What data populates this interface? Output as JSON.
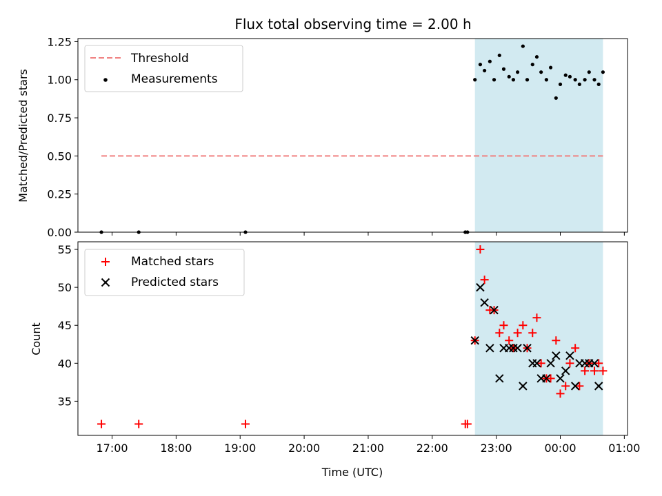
{
  "chart_data": [
    {
      "type": "scatter",
      "title": "Flux total observing time = 2.00 h",
      "xlabel": "",
      "ylabel": "Matched/Predicted stars",
      "x_ticks": [
        "17:00",
        "18:00",
        "19:00",
        "20:00",
        "21:00",
        "22:00",
        "23:00",
        "00:00",
        "01:00"
      ],
      "y_ticks": [
        "0.00",
        "0.25",
        "0.50",
        "0.75",
        "1.00",
        "1.25"
      ],
      "xlim": [
        "16:28",
        "01:03"
      ],
      "ylim": [
        0.0,
        1.27
      ],
      "shaded_region": {
        "from": "22:40",
        "to": "00:40",
        "color": "#add8e6"
      },
      "legend": {
        "placement": "top-left",
        "entries": [
          "Threshold",
          "Measurements"
        ]
      },
      "series": [
        {
          "name": "Threshold",
          "style": "dashed-line",
          "color": "#f08080",
          "x": [
            "16:50",
            "00:40"
          ],
          "y": [
            0.5,
            0.5
          ]
        },
        {
          "name": "Measurements",
          "style": "dot",
          "color": "#000000",
          "x": [
            "16:50",
            "17:25",
            "19:05",
            "22:31",
            "22:33",
            "22:40",
            "22:45",
            "22:49",
            "22:54",
            "22:58",
            "23:03",
            "23:07",
            "23:12",
            "23:16",
            "23:20",
            "23:25",
            "23:29",
            "23:34",
            "23:38",
            "23:42",
            "23:47",
            "23:51",
            "23:56",
            "00:00",
            "00:05",
            "00:09",
            "00:14",
            "00:18",
            "00:23",
            "00:27",
            "00:32",
            "00:36",
            "00:40"
          ],
          "y": [
            0.0,
            0.0,
            0.0,
            0.0,
            0.0,
            1.0,
            1.1,
            1.06,
            1.12,
            1.0,
            1.16,
            1.07,
            1.02,
            1.0,
            1.05,
            1.22,
            1.0,
            1.1,
            1.15,
            1.05,
            1.0,
            1.08,
            0.88,
            0.97,
            1.03,
            1.02,
            1.0,
            0.97,
            1.0,
            1.05,
            1.0,
            0.97,
            1.05
          ]
        }
      ]
    },
    {
      "type": "scatter",
      "title": "",
      "xlabel": "Time (UTC)",
      "ylabel": "Count",
      "x_ticks": [
        "17:00",
        "18:00",
        "19:00",
        "20:00",
        "21:00",
        "22:00",
        "23:00",
        "00:00",
        "01:00"
      ],
      "y_ticks": [
        "35",
        "40",
        "45",
        "50",
        "55"
      ],
      "xlim": [
        "16:28",
        "01:03"
      ],
      "ylim": [
        30.5,
        56.0
      ],
      "shaded_region": {
        "from": "22:40",
        "to": "00:40",
        "color": "#add8e6"
      },
      "legend": {
        "placement": "top-left",
        "entries": [
          "Matched stars",
          "Predicted stars"
        ]
      },
      "series": [
        {
          "name": "Matched stars",
          "marker": "plus",
          "color": "#ff0000",
          "x": [
            "16:50",
            "17:25",
            "19:05",
            "22:31",
            "22:33",
            "22:40",
            "22:45",
            "22:49",
            "22:54",
            "22:58",
            "23:03",
            "23:07",
            "23:12",
            "23:16",
            "23:20",
            "23:25",
            "23:29",
            "23:34",
            "23:38",
            "23:42",
            "23:47",
            "23:51",
            "23:56",
            "00:00",
            "00:05",
            "00:09",
            "00:14",
            "00:18",
            "00:23",
            "00:27",
            "00:32",
            "00:36",
            "00:40"
          ],
          "y": [
            32,
            32,
            32,
            32,
            32,
            43,
            55,
            51,
            47,
            47,
            44,
            45,
            43,
            42,
            44,
            45,
            42,
            44,
            46,
            40,
            38,
            38,
            43,
            36,
            37,
            40,
            42,
            37,
            39,
            40,
            39,
            40,
            39
          ]
        },
        {
          "name": "Predicted stars",
          "marker": "x",
          "color": "#000000",
          "x": [
            "22:40",
            "22:45",
            "22:49",
            "22:54",
            "22:58",
            "23:03",
            "23:07",
            "23:12",
            "23:16",
            "23:20",
            "23:25",
            "23:29",
            "23:34",
            "23:38",
            "23:42",
            "23:47",
            "23:51",
            "23:56",
            "00:00",
            "00:05",
            "00:09",
            "00:14",
            "00:18",
            "00:23",
            "00:27",
            "00:32",
            "00:36"
          ],
          "y": [
            43,
            50,
            48,
            42,
            47,
            38,
            42,
            42,
            42,
            42,
            37,
            42,
            40,
            40,
            38,
            38,
            40,
            41,
            38,
            39,
            41,
            37,
            40,
            40,
            40,
            40,
            37
          ]
        }
      ]
    }
  ]
}
